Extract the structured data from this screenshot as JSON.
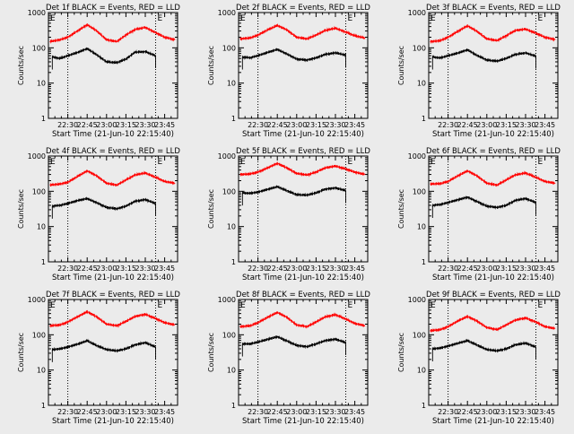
{
  "chart_data": [
    {
      "type": "line",
      "title": "Det 1f BLACK = Events, RED = LLD",
      "xlabel": "Start Time (21-Jun-10 22:15:40)",
      "ylabel": "Counts/sec",
      "yscale": "log",
      "ylim": [
        1,
        1000
      ],
      "xlim": [
        "22:15",
        "23:55"
      ],
      "x_ticks": [
        "22:30",
        "22:45",
        "23:00",
        "23:15",
        "23:30",
        "23:45"
      ],
      "y_ticks": [
        "1",
        "10",
        "100",
        "1000"
      ],
      "markers": [
        "22:30",
        "23:38"
      ],
      "corner_labels": [
        "E",
        "E"
      ],
      "series": [
        {
          "color": "#ff0000",
          "x": [
            "22:16",
            "22:24",
            "22:30",
            "22:38",
            "22:45",
            "22:52",
            "23:00",
            "23:08",
            "23:15",
            "23:22",
            "23:30",
            "23:38",
            "23:45",
            "23:53"
          ],
          "values": [
            150,
            170,
            200,
            310,
            450,
            310,
            170,
            150,
            230,
            330,
            380,
            270,
            200,
            170
          ]
        },
        {
          "color": "#000000",
          "x": [
            "22:18",
            "22:24",
            "22:30",
            "22:38",
            "22:45",
            "22:52",
            "23:00",
            "23:08",
            "23:15",
            "23:22",
            "23:30",
            "23:38"
          ],
          "values": [
            55,
            50,
            60,
            75,
            95,
            65,
            40,
            38,
            48,
            75,
            78,
            60
          ]
        }
      ]
    },
    {
      "type": "line",
      "title": "Det 2f BLACK = Events, RED = LLD",
      "xlabel": "Start Time (21-Jun-10 22:15:40)",
      "ylabel": "Counts/sec",
      "yscale": "log",
      "ylim": [
        1,
        1000
      ],
      "xlim": [
        "22:15",
        "23:55"
      ],
      "x_ticks": [
        "22:30",
        "22:45",
        "23:00",
        "23:15",
        "23:30",
        "23:45"
      ],
      "y_ticks": [
        "1",
        "10",
        "100",
        "1000"
      ],
      "markers": [
        "22:30",
        "23:38"
      ],
      "corner_labels": [
        "E",
        "E"
      ],
      "series": [
        {
          "color": "#ff0000",
          "x": [
            "22:16",
            "22:24",
            "22:30",
            "22:38",
            "22:45",
            "22:52",
            "23:00",
            "23:08",
            "23:15",
            "23:22",
            "23:30",
            "23:38",
            "23:45",
            "23:53"
          ],
          "values": [
            180,
            190,
            230,
            330,
            430,
            330,
            200,
            180,
            230,
            310,
            360,
            280,
            220,
            190
          ]
        },
        {
          "color": "#000000",
          "x": [
            "22:18",
            "22:24",
            "22:30",
            "22:38",
            "22:45",
            "22:52",
            "23:00",
            "23:08",
            "23:15",
            "23:22",
            "23:30",
            "23:38"
          ],
          "values": [
            55,
            52,
            60,
            75,
            90,
            68,
            48,
            45,
            52,
            65,
            72,
            62
          ]
        }
      ]
    },
    {
      "type": "line",
      "title": "Det 3f BLACK = Events, RED = LLD",
      "xlabel": "Start Time (21-Jun-10 22:15:40)",
      "ylabel": "Counts/sec",
      "yscale": "log",
      "ylim": [
        1,
        1000
      ],
      "xlim": [
        "22:15",
        "23:55"
      ],
      "x_ticks": [
        "22:30",
        "22:45",
        "23:00",
        "23:15",
        "23:30",
        "23:45"
      ],
      "y_ticks": [
        "1",
        "10",
        "100",
        "1000"
      ],
      "markers": [
        "22:30",
        "23:38"
      ],
      "corner_labels": [
        "E",
        "E"
      ],
      "series": [
        {
          "color": "#ff0000",
          "x": [
            "22:16",
            "22:24",
            "22:30",
            "22:38",
            "22:45",
            "22:52",
            "23:00",
            "23:08",
            "23:15",
            "23:22",
            "23:30",
            "23:38",
            "23:45",
            "23:53"
          ],
          "values": [
            150,
            160,
            200,
            300,
            420,
            300,
            180,
            160,
            220,
            310,
            340,
            260,
            200,
            170
          ]
        },
        {
          "color": "#000000",
          "x": [
            "22:18",
            "22:24",
            "22:30",
            "22:38",
            "22:45",
            "22:52",
            "23:00",
            "23:08",
            "23:15",
            "23:22",
            "23:30",
            "23:38"
          ],
          "values": [
            55,
            52,
            60,
            72,
            88,
            62,
            45,
            42,
            50,
            65,
            72,
            58
          ]
        }
      ]
    },
    {
      "type": "line",
      "title": "Det 4f BLACK = Events, RED = LLD",
      "xlabel": "Start Time (21-Jun-10 22:15:40)",
      "ylabel": "Counts/sec",
      "yscale": "log",
      "ylim": [
        1,
        1000
      ],
      "xlim": [
        "22:15",
        "23:55"
      ],
      "x_ticks": [
        "22:30",
        "22:45",
        "23:00",
        "23:15",
        "23:30",
        "23:45"
      ],
      "y_ticks": [
        "1",
        "10",
        "100",
        "1000"
      ],
      "markers": [
        "22:30",
        "23:38"
      ],
      "corner_labels": [
        "E",
        "E"
      ],
      "series": [
        {
          "color": "#ff0000",
          "x": [
            "22:16",
            "22:24",
            "22:30",
            "22:38",
            "22:45",
            "22:52",
            "23:00",
            "23:08",
            "23:15",
            "23:22",
            "23:30",
            "23:38",
            "23:45",
            "23:53"
          ],
          "values": [
            150,
            160,
            180,
            270,
            380,
            280,
            170,
            150,
            210,
            290,
            330,
            250,
            190,
            170
          ]
        },
        {
          "color": "#000000",
          "x": [
            "22:18",
            "22:24",
            "22:30",
            "22:38",
            "22:45",
            "22:52",
            "23:00",
            "23:08",
            "23:15",
            "23:22",
            "23:30",
            "23:38"
          ],
          "values": [
            38,
            40,
            45,
            55,
            62,
            48,
            35,
            32,
            38,
            52,
            58,
            45
          ]
        }
      ]
    },
    {
      "type": "line",
      "title": "Det 5f BLACK = Events, RED = LLD",
      "xlabel": "Start Time (21-Jun-10 22:15:40)",
      "ylabel": "Counts/sec",
      "yscale": "log",
      "ylim": [
        1,
        1000
      ],
      "xlim": [
        "22:15",
        "23:55"
      ],
      "x_ticks": [
        "22:30",
        "22:45",
        "23:00",
        "23:15",
        "23:30",
        "23:45"
      ],
      "y_ticks": [
        "1",
        "10",
        "100",
        "1000"
      ],
      "markers": [
        "22:30",
        "23:38"
      ],
      "corner_labels": [
        "E",
        "E"
      ],
      "series": [
        {
          "color": "#ff0000",
          "x": [
            "22:16",
            "22:24",
            "22:30",
            "22:38",
            "22:45",
            "22:52",
            "23:00",
            "23:08",
            "23:15",
            "23:22",
            "23:30",
            "23:38",
            "23:45",
            "23:53"
          ],
          "values": [
            300,
            310,
            350,
            470,
            620,
            470,
            320,
            290,
            350,
            460,
            520,
            430,
            350,
            300
          ]
        },
        {
          "color": "#000000",
          "x": [
            "22:18",
            "22:24",
            "22:30",
            "22:38",
            "22:45",
            "22:52",
            "23:00",
            "23:08",
            "23:15",
            "23:22",
            "23:30",
            "23:38"
          ],
          "values": [
            90,
            88,
            95,
            115,
            135,
            105,
            80,
            78,
            90,
            115,
            125,
            105
          ]
        }
      ]
    },
    {
      "type": "line",
      "title": "Det 6f BLACK = Events, RED = LLD",
      "xlabel": "Start Time (21-Jun-10 22:15:40)",
      "ylabel": "Counts/sec",
      "yscale": "log",
      "ylim": [
        1,
        1000
      ],
      "xlim": [
        "22:15",
        "23:55"
      ],
      "x_ticks": [
        "22:30",
        "22:45",
        "23:00",
        "23:15",
        "23:30",
        "23:45"
      ],
      "y_ticks": [
        "1",
        "10",
        "100",
        "1000"
      ],
      "markers": [
        "22:30",
        "23:38"
      ],
      "corner_labels": [
        "E",
        "E"
      ],
      "series": [
        {
          "color": "#ff0000",
          "x": [
            "22:16",
            "22:24",
            "22:30",
            "22:38",
            "22:45",
            "22:52",
            "23:00",
            "23:08",
            "23:15",
            "23:22",
            "23:30",
            "23:38",
            "23:45",
            "23:53"
          ],
          "values": [
            160,
            165,
            190,
            280,
            380,
            280,
            170,
            150,
            210,
            290,
            330,
            250,
            190,
            170
          ]
        },
        {
          "color": "#000000",
          "x": [
            "22:18",
            "22:24",
            "22:30",
            "22:38",
            "22:45",
            "22:52",
            "23:00",
            "23:08",
            "23:15",
            "23:22",
            "23:30",
            "23:38"
          ],
          "values": [
            40,
            42,
            48,
            58,
            68,
            52,
            38,
            35,
            40,
            55,
            62,
            48
          ]
        }
      ]
    },
    {
      "type": "line",
      "title": "Det 7f BLACK = Events, RED = LLD",
      "xlabel": "Start Time (21-Jun-10 22:15:40)",
      "ylabel": "Counts/sec",
      "yscale": "log",
      "ylim": [
        1,
        1000
      ],
      "xlim": [
        "22:15",
        "23:55"
      ],
      "x_ticks": [
        "22:30",
        "22:45",
        "23:00",
        "23:15",
        "23:30",
        "23:45"
      ],
      "y_ticks": [
        "1",
        "10",
        "100",
        "1000"
      ],
      "markers": [
        "22:30",
        "23:38"
      ],
      "corner_labels": [
        "E",
        "E"
      ],
      "series": [
        {
          "color": "#ff0000",
          "x": [
            "22:16",
            "22:24",
            "22:30",
            "22:38",
            "22:45",
            "22:52",
            "23:00",
            "23:08",
            "23:15",
            "23:22",
            "23:30",
            "23:38",
            "23:45",
            "23:53"
          ],
          "values": [
            180,
            190,
            230,
            330,
            450,
            330,
            200,
            180,
            240,
            330,
            380,
            290,
            220,
            190
          ]
        },
        {
          "color": "#000000",
          "x": [
            "22:18",
            "22:24",
            "22:30",
            "22:38",
            "22:45",
            "22:52",
            "23:00",
            "23:08",
            "23:15",
            "23:22",
            "23:30",
            "23:38"
          ],
          "values": [
            38,
            40,
            45,
            55,
            68,
            50,
            38,
            35,
            40,
            52,
            60,
            45
          ]
        }
      ]
    },
    {
      "type": "line",
      "title": "Det 8f BLACK = Events, RED = LLD",
      "xlabel": "Start Time (21-Jun-10 22:15:40)",
      "ylabel": "Counts/sec",
      "yscale": "log",
      "ylim": [
        1,
        1000
      ],
      "xlim": [
        "22:15",
        "23:55"
      ],
      "x_ticks": [
        "22:30",
        "22:45",
        "23:00",
        "23:15",
        "23:30",
        "23:45"
      ],
      "y_ticks": [
        "1",
        "10",
        "100",
        "1000"
      ],
      "markers": [
        "22:30",
        "23:38"
      ],
      "corner_labels": [
        "E",
        "E"
      ],
      "series": [
        {
          "color": "#ff0000",
          "x": [
            "22:16",
            "22:24",
            "22:30",
            "22:38",
            "22:45",
            "22:52",
            "23:00",
            "23:08",
            "23:15",
            "23:22",
            "23:30",
            "23:38",
            "23:45",
            "23:53"
          ],
          "values": [
            170,
            180,
            220,
            320,
            430,
            320,
            190,
            170,
            230,
            320,
            370,
            280,
            210,
            180
          ]
        },
        {
          "color": "#000000",
          "x": [
            "22:18",
            "22:24",
            "22:30",
            "22:38",
            "22:45",
            "22:52",
            "23:00",
            "23:08",
            "23:15",
            "23:22",
            "23:30",
            "23:38"
          ],
          "values": [
            55,
            55,
            62,
            75,
            88,
            68,
            50,
            46,
            55,
            68,
            75,
            60
          ]
        }
      ]
    },
    {
      "type": "line",
      "title": "Det 9f BLACK = Events, RED = LLD",
      "xlabel": "Start Time (21-Jun-10 22:15:40)",
      "ylabel": "Counts/sec",
      "yscale": "log",
      "ylim": [
        1,
        1000
      ],
      "xlim": [
        "22:15",
        "23:55"
      ],
      "x_ticks": [
        "22:30",
        "22:45",
        "23:00",
        "23:15",
        "23:30",
        "23:45"
      ],
      "y_ticks": [
        "1",
        "10",
        "100",
        "1000"
      ],
      "markers": [
        "22:30",
        "23:38"
      ],
      "corner_labels": [
        "E",
        "E"
      ],
      "series": [
        {
          "color": "#ff0000",
          "x": [
            "22:16",
            "22:24",
            "22:30",
            "22:38",
            "22:45",
            "22:52",
            "23:00",
            "23:08",
            "23:15",
            "23:22",
            "23:30",
            "23:38",
            "23:45",
            "23:53"
          ],
          "values": [
            130,
            140,
            170,
            250,
            330,
            250,
            160,
            140,
            190,
            260,
            300,
            230,
            170,
            150
          ]
        },
        {
          "color": "#000000",
          "x": [
            "22:18",
            "22:24",
            "22:30",
            "22:38",
            "22:45",
            "22:52",
            "23:00",
            "23:08",
            "23:15",
            "23:22",
            "23:30",
            "23:38"
          ],
          "values": [
            40,
            42,
            48,
            58,
            68,
            52,
            38,
            35,
            40,
            52,
            58,
            45
          ]
        }
      ]
    }
  ]
}
